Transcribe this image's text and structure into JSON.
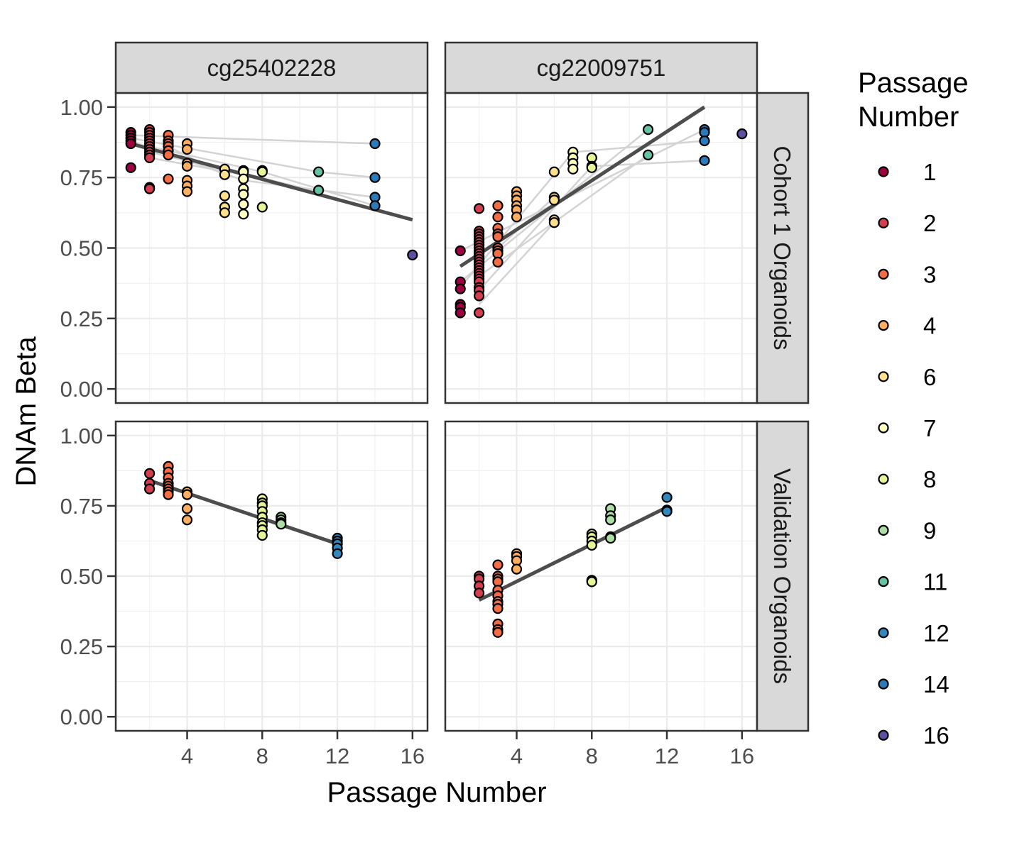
{
  "chart_data": {
    "type": "scatter",
    "xlabel": "Passage Number",
    "ylabel": "DNAm Beta",
    "xlim": [
      0.2,
      16.8
    ],
    "ylim": [
      -0.05,
      1.05
    ],
    "x_ticks": [
      4,
      8,
      12,
      16
    ],
    "y_ticks": [
      0,
      0.25,
      0.5,
      0.75,
      1.0
    ],
    "y_tick_labels": [
      "0.00",
      "0.25",
      "0.50",
      "0.75",
      "1.00"
    ],
    "grid": true,
    "legend": {
      "title_lines": [
        "Passage",
        "Number"
      ],
      "position": "right",
      "entries": [
        {
          "label": "1",
          "color": "#9E0142"
        },
        {
          "label": "2",
          "color": "#D53E4F"
        },
        {
          "label": "3",
          "color": "#F46D43"
        },
        {
          "label": "4",
          "color": "#FDAE61"
        },
        {
          "label": "6",
          "color": "#FEE08B"
        },
        {
          "label": "7",
          "color": "#FFFFBF"
        },
        {
          "label": "8",
          "color": "#E6F598"
        },
        {
          "label": "9",
          "color": "#ABDDA4"
        },
        {
          "label": "11",
          "color": "#66C2A5"
        },
        {
          "label": "12",
          "color": "#3288BD"
        },
        {
          "label": "14",
          "color": "#2B7BBA"
        },
        {
          "label": "16",
          "color": "#5E4FA2"
        }
      ]
    },
    "columns": [
      "cg25402228",
      "cg22009751"
    ],
    "rows": [
      "Cohort 1 Organoids",
      "Validation Organoids"
    ],
    "panels": [
      {
        "col": 0,
        "row": 0,
        "fit": [
          [
            1,
            0.87
          ],
          [
            16,
            0.6
          ]
        ],
        "paths": [
          [
            [
              1,
              0.9
            ],
            [
              14,
              0.87
            ]
          ],
          [
            [
              1,
              0.89
            ],
            [
              11,
              0.77
            ],
            [
              14,
              0.75
            ]
          ],
          [
            [
              1,
              0.88
            ],
            [
              7,
              0.74
            ],
            [
              14,
              0.68
            ]
          ],
          [
            [
              2,
              0.86
            ],
            [
              8,
              0.77
            ],
            [
              14,
              0.65
            ]
          ],
          [
            [
              2,
              0.84
            ],
            [
              11,
              0.7
            ]
          ],
          [
            [
              2,
              0.82
            ],
            [
              7,
              0.76
            ]
          ],
          [
            [
              3,
              0.86
            ],
            [
              6,
              0.76
            ]
          ]
        ],
        "points": [
          [
            1,
            0.91
          ],
          [
            1,
            0.9
          ],
          [
            1,
            0.89
          ],
          [
            1,
            0.88
          ],
          [
            1,
            0.87
          ],
          [
            1,
            0.785
          ],
          [
            2,
            0.92
          ],
          [
            2,
            0.91
          ],
          [
            2,
            0.9
          ],
          [
            2,
            0.89
          ],
          [
            2,
            0.88
          ],
          [
            2,
            0.87
          ],
          [
            2,
            0.86
          ],
          [
            2,
            0.85
          ],
          [
            2,
            0.84
          ],
          [
            2,
            0.83
          ],
          [
            2,
            0.82
          ],
          [
            2,
            0.715
          ],
          [
            2,
            0.71
          ],
          [
            3,
            0.9
          ],
          [
            3,
            0.88
          ],
          [
            3,
            0.87
          ],
          [
            3,
            0.86
          ],
          [
            3,
            0.845
          ],
          [
            3,
            0.83
          ],
          [
            3,
            0.745
          ],
          [
            4,
            0.87
          ],
          [
            4,
            0.85
          ],
          [
            4,
            0.8
          ],
          [
            4,
            0.79
          ],
          [
            4,
            0.74
          ],
          [
            4,
            0.72
          ],
          [
            4,
            0.7
          ],
          [
            6,
            0.78
          ],
          [
            6,
            0.76
          ],
          [
            6,
            0.685
          ],
          [
            6,
            0.645
          ],
          [
            6,
            0.625
          ],
          [
            7,
            0.775
          ],
          [
            7,
            0.77
          ],
          [
            7,
            0.745
          ],
          [
            7,
            0.71
          ],
          [
            7,
            0.69
          ],
          [
            7,
            0.655
          ],
          [
            7,
            0.62
          ],
          [
            8,
            0.775
          ],
          [
            8,
            0.77
          ],
          [
            8,
            0.645
          ],
          [
            11,
            0.77
          ],
          [
            11,
            0.705
          ],
          [
            14,
            0.87
          ],
          [
            14,
            0.75
          ],
          [
            14,
            0.68
          ],
          [
            14,
            0.65
          ],
          [
            16,
            0.475
          ]
        ]
      },
      {
        "col": 1,
        "row": 0,
        "fit": [
          [
            1,
            0.435
          ],
          [
            14,
            1.0
          ]
        ],
        "paths": [
          [
            [
              1,
              0.49
            ],
            [
              14,
              0.92
            ]
          ],
          [
            [
              1,
              0.38
            ],
            [
              11,
              0.92
            ]
          ],
          [
            [
              1,
              0.36
            ],
            [
              7,
              0.84
            ],
            [
              14,
              0.88
            ]
          ],
          [
            [
              2,
              0.4
            ],
            [
              11,
              0.83
            ]
          ],
          [
            [
              2,
              0.35
            ],
            [
              8,
              0.79
            ],
            [
              14,
              0.81
            ]
          ],
          [
            [
              2,
              0.3
            ],
            [
              6,
              0.59
            ]
          ],
          [
            [
              3,
              0.5
            ],
            [
              6,
              0.68
            ]
          ]
        ],
        "points": [
          [
            1,
            0.49
          ],
          [
            1,
            0.38
          ],
          [
            1,
            0.355
          ],
          [
            1,
            0.3
          ],
          [
            1,
            0.29
          ],
          [
            1,
            0.27
          ],
          [
            2,
            0.64
          ],
          [
            2,
            0.56
          ],
          [
            2,
            0.55
          ],
          [
            2,
            0.54
          ],
          [
            2,
            0.53
          ],
          [
            2,
            0.52
          ],
          [
            2,
            0.51
          ],
          [
            2,
            0.5
          ],
          [
            2,
            0.49
          ],
          [
            2,
            0.48
          ],
          [
            2,
            0.47
          ],
          [
            2,
            0.46
          ],
          [
            2,
            0.45
          ],
          [
            2,
            0.44
          ],
          [
            2,
            0.43
          ],
          [
            2,
            0.42
          ],
          [
            2,
            0.41
          ],
          [
            2,
            0.4
          ],
          [
            2,
            0.39
          ],
          [
            2,
            0.38
          ],
          [
            2,
            0.36
          ],
          [
            2,
            0.35
          ],
          [
            2,
            0.33
          ],
          [
            2,
            0.27
          ],
          [
            3,
            0.65
          ],
          [
            3,
            0.61
          ],
          [
            3,
            0.57
          ],
          [
            3,
            0.55
          ],
          [
            3,
            0.54
          ],
          [
            3,
            0.5
          ],
          [
            3,
            0.49
          ],
          [
            3,
            0.48
          ],
          [
            3,
            0.45
          ],
          [
            4,
            0.7
          ],
          [
            4,
            0.685
          ],
          [
            4,
            0.67
          ],
          [
            4,
            0.65
          ],
          [
            4,
            0.635
          ],
          [
            4,
            0.61
          ],
          [
            6,
            0.77
          ],
          [
            6,
            0.68
          ],
          [
            6,
            0.67
          ],
          [
            6,
            0.6
          ],
          [
            6,
            0.59
          ],
          [
            7,
            0.84
          ],
          [
            7,
            0.82
          ],
          [
            7,
            0.8
          ],
          [
            7,
            0.78
          ],
          [
            8,
            0.82
          ],
          [
            8,
            0.79
          ],
          [
            8,
            0.785
          ],
          [
            11,
            0.92
          ],
          [
            11,
            0.83
          ],
          [
            14,
            0.92
          ],
          [
            14,
            0.91
          ],
          [
            14,
            0.88
          ],
          [
            14,
            0.81
          ],
          [
            16,
            0.905
          ]
        ]
      },
      {
        "col": 0,
        "row": 1,
        "fit": [
          [
            2,
            0.84
          ],
          [
            12,
            0.615
          ]
        ],
        "paths": [],
        "points": [
          [
            2,
            0.865
          ],
          [
            2,
            0.83
          ],
          [
            2,
            0.81
          ],
          [
            3,
            0.89
          ],
          [
            3,
            0.87
          ],
          [
            3,
            0.85
          ],
          [
            3,
            0.83
          ],
          [
            3,
            0.82
          ],
          [
            3,
            0.81
          ],
          [
            3,
            0.8
          ],
          [
            3,
            0.79
          ],
          [
            4,
            0.8
          ],
          [
            4,
            0.79
          ],
          [
            4,
            0.74
          ],
          [
            4,
            0.7
          ],
          [
            8,
            0.775
          ],
          [
            8,
            0.76
          ],
          [
            8,
            0.75
          ],
          [
            8,
            0.73
          ],
          [
            8,
            0.71
          ],
          [
            8,
            0.69
          ],
          [
            8,
            0.68
          ],
          [
            8,
            0.665
          ],
          [
            8,
            0.645
          ],
          [
            9,
            0.71
          ],
          [
            9,
            0.7
          ],
          [
            9,
            0.69
          ],
          [
            9,
            0.685
          ],
          [
            12,
            0.635
          ],
          [
            12,
            0.625
          ],
          [
            12,
            0.615
          ],
          [
            12,
            0.6
          ],
          [
            12,
            0.58
          ]
        ]
      },
      {
        "col": 1,
        "row": 1,
        "fit": [
          [
            2,
            0.415
          ],
          [
            12,
            0.745
          ]
        ],
        "paths": [],
        "points": [
          [
            2,
            0.5
          ],
          [
            2,
            0.49
          ],
          [
            2,
            0.465
          ],
          [
            2,
            0.44
          ],
          [
            3,
            0.54
          ],
          [
            3,
            0.5
          ],
          [
            3,
            0.49
          ],
          [
            3,
            0.48
          ],
          [
            3,
            0.45
          ],
          [
            3,
            0.43
          ],
          [
            3,
            0.41
          ],
          [
            3,
            0.4
          ],
          [
            3,
            0.385
          ],
          [
            3,
            0.33
          ],
          [
            3,
            0.31
          ],
          [
            3,
            0.3
          ],
          [
            4,
            0.58
          ],
          [
            4,
            0.57
          ],
          [
            4,
            0.555
          ],
          [
            4,
            0.525
          ],
          [
            8,
            0.65
          ],
          [
            8,
            0.64
          ],
          [
            8,
            0.625
          ],
          [
            8,
            0.61
          ],
          [
            8,
            0.485
          ],
          [
            8,
            0.48
          ],
          [
            9,
            0.74
          ],
          [
            9,
            0.715
          ],
          [
            9,
            0.7
          ],
          [
            9,
            0.64
          ],
          [
            9,
            0.635
          ],
          [
            12,
            0.78
          ],
          [
            12,
            0.735
          ],
          [
            12,
            0.73
          ]
        ]
      }
    ]
  }
}
